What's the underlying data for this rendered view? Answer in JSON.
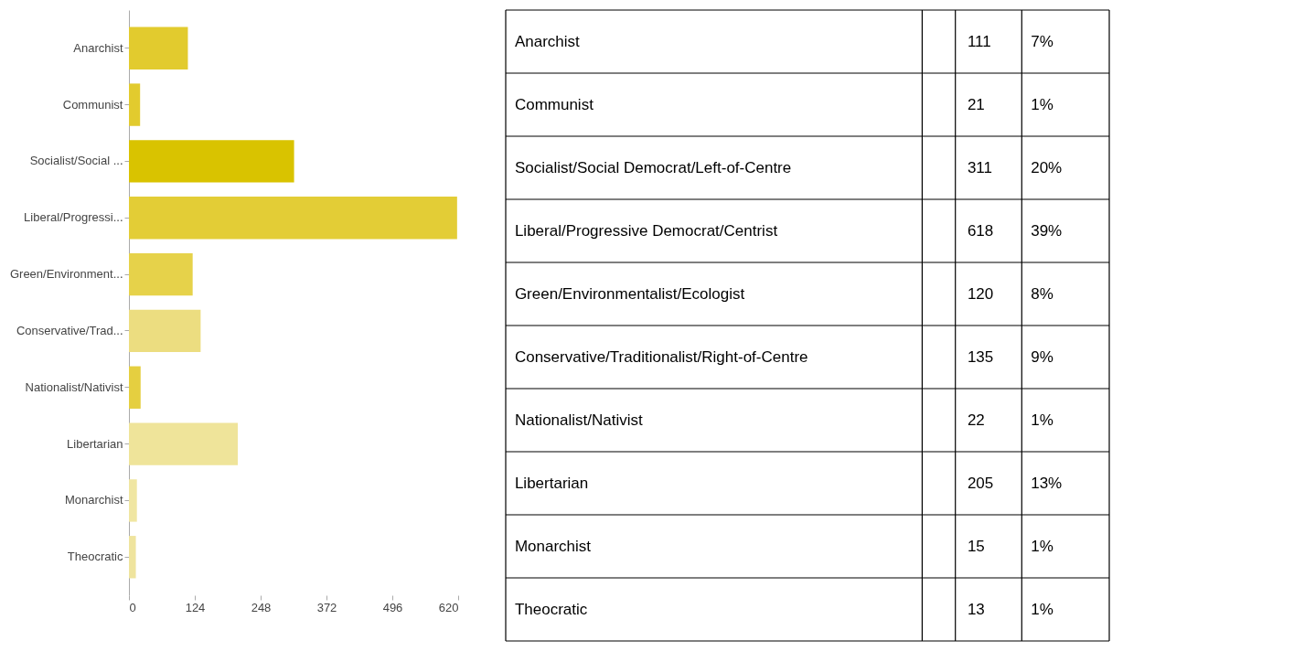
{
  "chart_data": [
    {
      "type": "bar",
      "orientation": "horizontal",
      "categories": [
        "Anarchist",
        "Communist",
        "Socialist/Social ...",
        "Liberal/Progressi...",
        "Green/Environment...",
        "Conservative/Trad...",
        "Nationalist/Nativist",
        "Libertarian",
        "Monarchist",
        "Theocratic"
      ],
      "values": [
        111,
        21,
        311,
        618,
        120,
        135,
        22,
        205,
        15,
        13
      ],
      "colors": [
        "#e2cb2e",
        "#e2cb2e",
        "#d9c300",
        "#e3cd36",
        "#e6d24a",
        "#ecdd80",
        "#e5cf40",
        "#efe49a",
        "#f0e6a2",
        "#efe49e"
      ],
      "xlim": [
        0,
        620
      ],
      "xticks": [
        0,
        124,
        248,
        372,
        496,
        620
      ],
      "grid": false
    },
    {
      "type": "other",
      "categories": [
        "Anarchist",
        "Communist",
        "Socialist/Social Democrat/Left-of-Centre",
        "Liberal/Progressive Democrat/Centrist",
        "Green/Environmentalist/Ecologist",
        "Conservative/Traditionalist/Right-of-Centre",
        "Nationalist/Nativist",
        "Libertarian",
        "Monarchist",
        "Theocratic"
      ],
      "series": [
        {
          "values": [
            111,
            21,
            311,
            618,
            120,
            135,
            22,
            205,
            15,
            13
          ]
        },
        {
          "values": [
            7,
            1,
            20,
            39,
            8,
            9,
            1,
            13,
            1,
            1
          ],
          "value_labels": [
            "7%",
            "1%",
            "20%",
            "39%",
            "8%",
            "9%",
            "1%",
            "13%",
            "1%",
            "1%"
          ]
        }
      ],
      "data_labels": true
    }
  ]
}
